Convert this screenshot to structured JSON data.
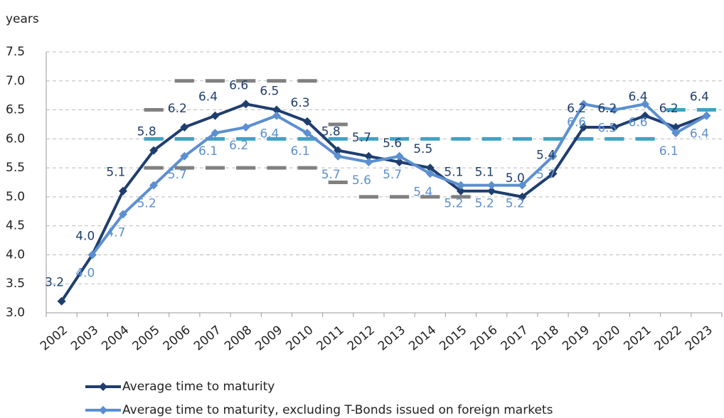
{
  "chart_data": {
    "type": "line",
    "y_label": "years",
    "categories": [
      "2002",
      "2003",
      "2004",
      "2005",
      "2006",
      "2007",
      "2008",
      "2009",
      "2010",
      "2011",
      "2012",
      "2013",
      "2014",
      "2015",
      "2016",
      "2017",
      "2018",
      "2019",
      "2020",
      "2021",
      "2022",
      "2023"
    ],
    "series": [
      {
        "name": "Average time to maturity",
        "color": "#1f3e6e",
        "values": [
          3.2,
          4.0,
          5.1,
          5.8,
          6.2,
          6.4,
          6.6,
          6.5,
          6.3,
          5.8,
          5.7,
          5.6,
          5.5,
          5.1,
          5.1,
          5.0,
          5.4,
          6.2,
          6.2,
          6.4,
          6.2,
          6.4
        ],
        "value_labels": [
          "3.2",
          "4.0",
          "5.1",
          "5.8",
          "6.2",
          "6.4",
          "6.6",
          "6.5",
          "6.3",
          "5.8",
          "5.7",
          "5.6",
          "5.5",
          "5.1",
          "5.1",
          "5.0",
          "5.4",
          "6.2",
          "6.2",
          "6.4",
          "6.2",
          "6.4"
        ]
      },
      {
        "name": "Average time to maturity, excluding T-Bonds issued on foreign markets",
        "color": "#5b8fd0",
        "values": [
          null,
          4.0,
          4.7,
          5.2,
          5.7,
          6.1,
          6.2,
          6.4,
          6.1,
          5.7,
          5.6,
          5.7,
          5.4,
          5.2,
          5.2,
          5.2,
          5.7,
          6.6,
          6.5,
          6.6,
          6.1,
          6.4
        ],
        "value_labels": [
          null,
          "4.0",
          "4.7",
          "5.2",
          "5.7",
          "6.1",
          "6.2",
          "6.4",
          "6.1",
          "5.7",
          "5.6",
          "5.7",
          "5.4",
          "5.2",
          "5.2",
          "5.2",
          "5.7",
          "6.6",
          "6.5",
          "6.6",
          "6.1",
          "6.4"
        ]
      }
    ],
    "reference_lines": [
      {
        "color": "#808080",
        "values": [
          null,
          null,
          null,
          6.5,
          7.0,
          7.0,
          7.0,
          7.0,
          7.0,
          6.25,
          null,
          null,
          null,
          null,
          null,
          null,
          null,
          null,
          null,
          null,
          null,
          null
        ]
      },
      {
        "color": "#808080",
        "values": [
          null,
          null,
          null,
          5.5,
          5.5,
          5.5,
          5.5,
          5.5,
          5.5,
          5.25,
          5.0,
          5.0,
          5.0,
          5.0,
          null,
          null,
          null,
          null,
          null,
          null,
          null,
          null
        ]
      },
      {
        "color": "#3fa3c4",
        "values": [
          null,
          null,
          null,
          6.0,
          6.0,
          6.0,
          6.0,
          6.0,
          6.0,
          6.0,
          6.0,
          6.0,
          6.0,
          6.0,
          6.0,
          6.0,
          6.0,
          6.0,
          6.0,
          6.0,
          6.5,
          6.5
        ]
      }
    ],
    "ylim": [
      3.0,
      7.5
    ],
    "yticks": [
      {
        "value": 3.0,
        "label": "3.0"
      },
      3.5,
      {
        "value": 4.0,
        "label": "4.0"
      },
      4.5,
      {
        "value": 5.0,
        "label": "5.0"
      },
      5.5,
      {
        "value": 6.0,
        "label": "6.0"
      },
      6.5,
      {
        "value": 7.0,
        "label": "7.0"
      },
      7.5
    ],
    "grid": true
  }
}
